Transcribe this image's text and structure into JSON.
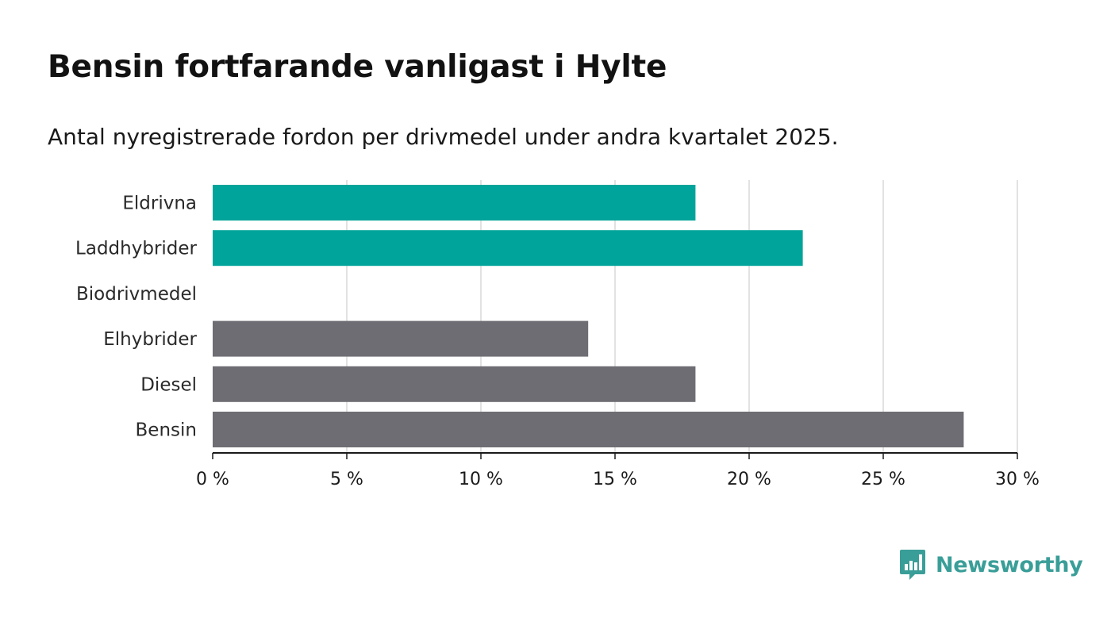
{
  "title": "Bensin fortfarande vanligast i Hylte",
  "subtitle": "Antal nyregistrerade fordon per drivmedel under andra kvartalet 2025.",
  "brand": {
    "name": "Newsworthy",
    "icon": "newsworthy-logo-icon",
    "color": "#3a9e98"
  },
  "chart_data": {
    "type": "bar",
    "orientation": "horizontal",
    "categories": [
      "Eldrivna",
      "Laddhybrider",
      "Biodrivmedel",
      "Elhybrider",
      "Diesel",
      "Bensin"
    ],
    "values": [
      18,
      22,
      0,
      14,
      18,
      28
    ],
    "colors": [
      "#00a49a",
      "#00a49a",
      "#00a49a",
      "#6e6d73",
      "#6e6d73",
      "#6e6d73"
    ],
    "xlim": [
      0,
      30
    ],
    "xticks": [
      0,
      5,
      10,
      15,
      20,
      25,
      30
    ],
    "xtick_labels": [
      "0 %",
      "5 %",
      "10 %",
      "15 %",
      "20 %",
      "25 %",
      "30 %"
    ],
    "grid": true,
    "xlabel": "",
    "ylabel": ""
  }
}
